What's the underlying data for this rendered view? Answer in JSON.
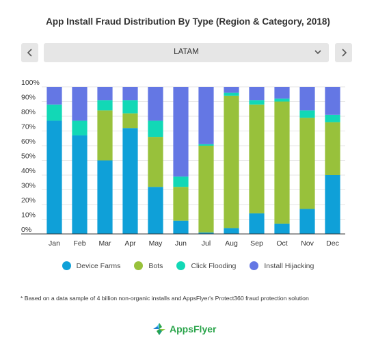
{
  "title": "App Install Fraud Distribution By Type (Region & Category, 2018)",
  "selector": {
    "prev_icon": "chevron-left-icon",
    "next_icon": "chevron-right-icon",
    "dropdown_icon": "chevron-down-icon",
    "selected_region": "LATAM"
  },
  "chart_data": {
    "type": "bar",
    "stacked": true,
    "categories": [
      "Jan",
      "Feb",
      "Mar",
      "Apr",
      "May",
      "Jun",
      "Jul",
      "Aug",
      "Sep",
      "Oct",
      "Nov",
      "Dec"
    ],
    "ylim": [
      0,
      100
    ],
    "y_ticks": [
      "0%",
      "10%",
      "20%",
      "30%",
      "40%",
      "50%",
      "60%",
      "70%",
      "80%",
      "90%",
      "100%"
    ],
    "grid": true,
    "legend_position": "bottom",
    "series": [
      {
        "name": "Device Farms",
        "color": "#0fa0d8",
        "values": [
          77,
          67,
          50,
          72,
          32,
          9,
          1,
          4,
          14,
          7,
          17,
          40
        ]
      },
      {
        "name": "Bots",
        "color": "#98c13b",
        "values": [
          0,
          0,
          34,
          10,
          34,
          23,
          59,
          90,
          74,
          83,
          62,
          36
        ]
      },
      {
        "name": "Click Flooding",
        "color": "#12d8b6",
        "values": [
          11,
          10,
          7,
          9,
          11,
          7,
          1,
          2,
          3,
          2,
          5,
          5
        ]
      },
      {
        "name": "Install Hijacking",
        "color": "#6477e4",
        "values": [
          12,
          23,
          9,
          9,
          23,
          61,
          39,
          4,
          9,
          8,
          16,
          19
        ]
      }
    ]
  },
  "footnote": "* Based on a data sample of 4 billion non-organic installs and AppsFlyer's Protect360 fraud protection solution",
  "logo": {
    "text": "AppsFlyer",
    "icon": "appsflyer-logo-icon"
  }
}
